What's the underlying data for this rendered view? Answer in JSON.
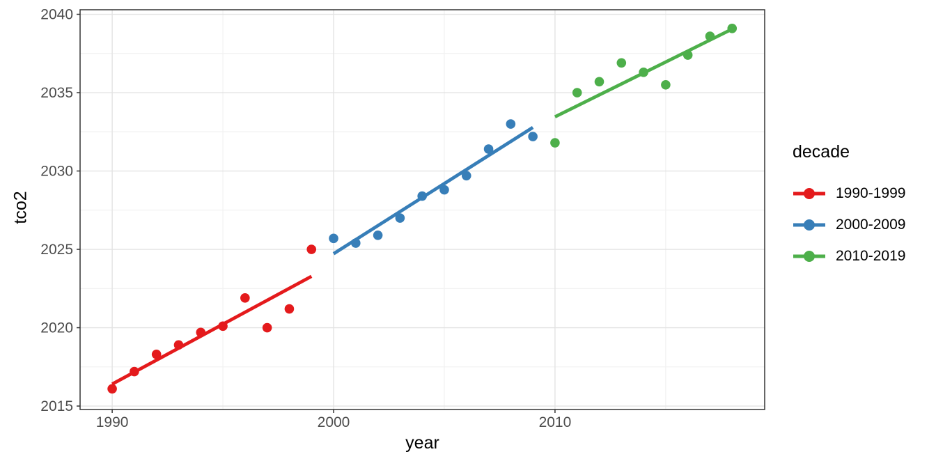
{
  "chart_data": {
    "type": "scatter",
    "title": "",
    "xlabel": "year",
    "ylabel": "tco2",
    "legend_title": "decade",
    "legend_position": "right",
    "grid": true,
    "trend": "linear-fit-per-series",
    "x_ticks": [
      1990,
      2000,
      2010
    ],
    "y_ticks": [
      2015,
      2020,
      2025,
      2030,
      2035,
      2040
    ],
    "xlim": [
      1988.55,
      2019.47
    ],
    "ylim": [
      2014.78,
      2040.29
    ],
    "series": [
      {
        "name": "1990-1999",
        "color": "#E41A1C",
        "x": [
          1990,
          1991,
          1992,
          1993,
          1994,
          1995,
          1996,
          1997,
          1998,
          1999
        ],
        "y": [
          2016.1,
          2017.2,
          2018.3,
          2018.9,
          2019.7,
          2020.1,
          2021.9,
          2020.0,
          2021.2,
          2025.0
        ]
      },
      {
        "name": "2000-2009",
        "color": "#377EB8",
        "x": [
          2000,
          2001,
          2002,
          2003,
          2004,
          2005,
          2006,
          2007,
          2008,
          2009
        ],
        "y": [
          2025.7,
          2025.4,
          2025.9,
          2027.0,
          2028.4,
          2028.8,
          2029.7,
          2031.4,
          2033.0,
          2032.2
        ]
      },
      {
        "name": "2010-2019",
        "color": "#4DAF4A",
        "x": [
          2010,
          2011,
          2012,
          2013,
          2014,
          2015,
          2016,
          2017,
          2018
        ],
        "y": [
          2031.8,
          2035.0,
          2035.7,
          2036.9,
          2036.3,
          2035.5,
          2037.4,
          2038.6,
          2039.1
        ]
      }
    ],
    "theme": {
      "background": "#FFFFFF",
      "panel_border": "#333333",
      "grid_major": "#E3E3E3",
      "grid_minor": "#F1F1F1",
      "tick_color": "#333333",
      "tick_label_color": "#4D4D4D",
      "axis_title_color": "#000000"
    }
  }
}
